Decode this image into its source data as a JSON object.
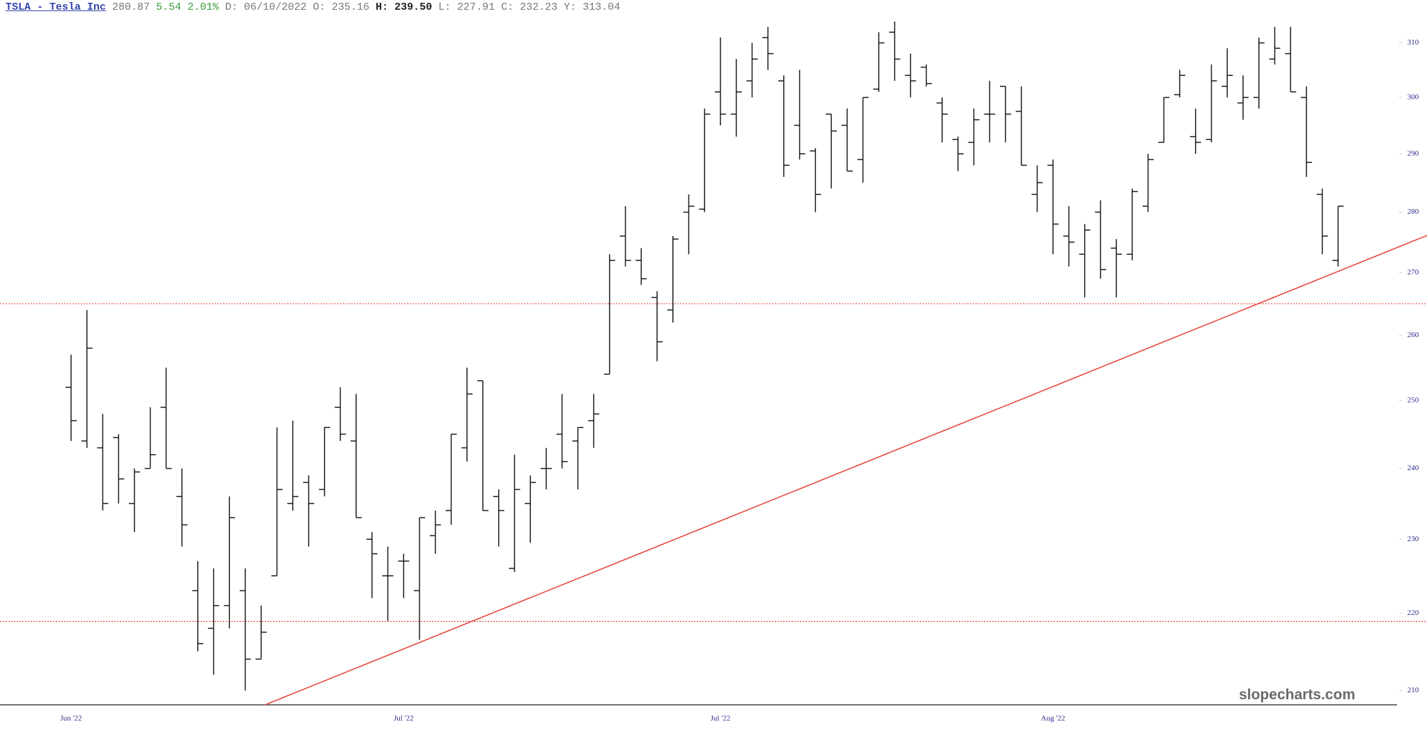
{
  "chart_data": {
    "type": "ohlc",
    "header": [
      "TSLA - Tesla Inc",
      "280.87",
      "5.54",
      "2.01%",
      "D: 06/10/2022",
      "O: 235.16",
      "H: 239.50",
      "L: 227.91",
      "C: 232.23",
      "Y: 313.04"
    ],
    "watermark": "slopecharts.com",
    "log": true,
    "color": "#1a1a1a",
    "ylim": [
      208.2,
      318.1
    ],
    "yticks": [
      210,
      220,
      230,
      240,
      250,
      260,
      270,
      280,
      290,
      300,
      310
    ],
    "categories": [
      "Jun '22",
      null,
      null,
      null,
      null,
      null,
      null,
      null,
      null,
      null,
      null,
      null,
      null,
      null,
      null,
      null,
      null,
      null,
      null,
      null,
      null,
      "Jul '22",
      null,
      null,
      null,
      null,
      null,
      null,
      null,
      null,
      null,
      null,
      null,
      null,
      null,
      null,
      null,
      null,
      null,
      null,
      null,
      "Jul '22",
      null,
      null,
      null,
      null,
      null,
      null,
      null,
      null,
      null,
      null,
      null,
      null,
      null,
      null,
      null,
      null,
      null,
      null,
      null,
      null,
      "Aug '22",
      null,
      null,
      null,
      null,
      null,
      null,
      null,
      null,
      null,
      null,
      null,
      null,
      null,
      null,
      null,
      null,
      null,
      null
    ],
    "open": [
      252,
      244,
      243,
      244.5,
      235,
      240,
      249,
      236,
      223,
      218,
      221,
      223,
      214,
      225,
      235,
      238,
      237,
      249,
      244,
      230,
      225,
      227,
      223,
      230.5,
      234,
      243,
      253,
      236,
      226,
      235,
      240,
      245,
      244,
      247,
      254,
      276,
      272,
      266,
      264,
      280,
      280.5,
      301,
      297,
      303,
      311,
      303,
      295,
      290.5,
      297,
      295,
      289,
      301.5,
      312,
      304,
      305.5,
      299,
      292.5,
      292,
      297,
      302,
      297.5,
      283,
      288,
      276,
      273,
      280,
      274,
      273,
      281,
      292,
      300.5,
      293,
      292.5,
      302,
      299,
      300,
      307,
      308,
      300,
      283,
      272
    ],
    "high": [
      257,
      264,
      248,
      245,
      240,
      249,
      255,
      240,
      227,
      226,
      236,
      226,
      221,
      246,
      247,
      239,
      246,
      252,
      251,
      231,
      229,
      228,
      233,
      234,
      245,
      255,
      253,
      237,
      242,
      239,
      243,
      251,
      246,
      251,
      273,
      281,
      274,
      267,
      276,
      283,
      298,
      311,
      307,
      310,
      313,
      304,
      305,
      291,
      297,
      298,
      300,
      312,
      314,
      308,
      306,
      300,
      293,
      298,
      303,
      302,
      302,
      288,
      289,
      281,
      278,
      282,
      275.5,
      284,
      290,
      300,
      305,
      298,
      306,
      309,
      304,
      311,
      313,
      313,
      302,
      284,
      281
    ],
    "low": [
      244,
      243,
      234,
      235,
      231,
      240,
      240,
      229,
      215,
      212,
      218,
      210,
      214,
      225,
      234,
      229,
      236,
      244,
      233,
      222,
      219,
      222,
      216.5,
      228,
      232,
      241,
      234,
      229,
      225.5,
      229.5,
      237,
      240,
      237,
      243,
      254,
      271,
      268,
      256,
      262,
      273,
      280,
      295,
      293,
      300,
      305,
      286,
      289,
      280,
      284,
      287,
      285,
      301,
      303,
      300,
      302,
      292,
      287,
      288,
      292,
      292,
      288,
      280,
      273,
      271,
      266,
      269,
      266,
      272,
      280,
      292,
      300,
      290,
      292,
      300,
      296,
      298,
      306,
      301,
      286,
      273,
      271
    ],
    "close": [
      247,
      258,
      235,
      238.5,
      239.5,
      242,
      240,
      232,
      216,
      221,
      233,
      214,
      217.5,
      237,
      236,
      235,
      246,
      245,
      233,
      228,
      225,
      227,
      233,
      232,
      245,
      251,
      234,
      234,
      237,
      238,
      240,
      241,
      246,
      248,
      272,
      272,
      269,
      259,
      275.5,
      281,
      297,
      297,
      301,
      307,
      308,
      288,
      290,
      283,
      294,
      287,
      300,
      310,
      307,
      303,
      302.5,
      297,
      290,
      296,
      297,
      297,
      288,
      285,
      278,
      275,
      277,
      270.5,
      273,
      283.5,
      289,
      300,
      304,
      292,
      303,
      304,
      300,
      310,
      309,
      301,
      288.5,
      276,
      281
    ],
    "hlines": [
      265.0,
      218.9
    ],
    "trendline": {
      "x": [
        13,
        80
      ],
      "y": [
        208.8,
        270.2
      ]
    },
    "annotation_color": "#e8473f"
  }
}
